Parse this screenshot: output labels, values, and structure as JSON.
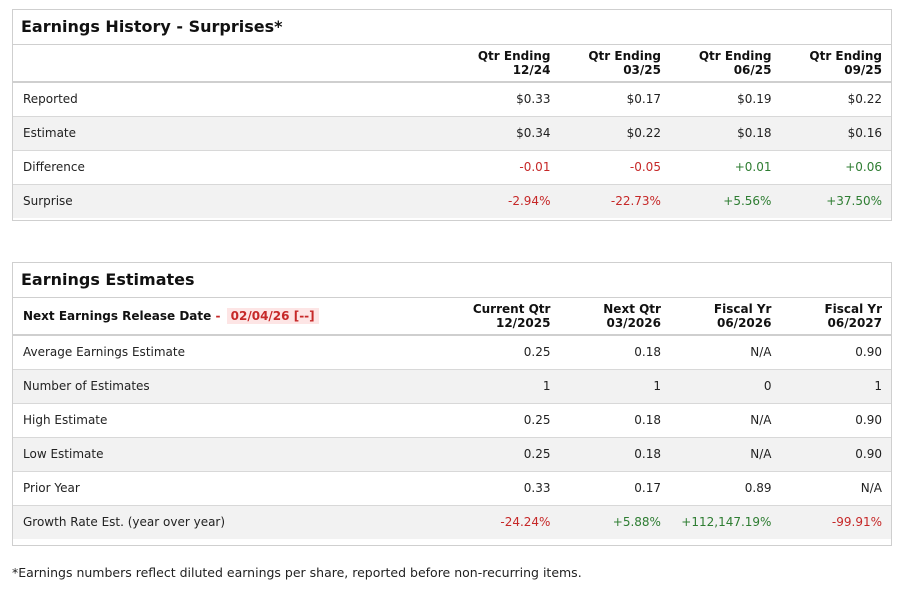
{
  "history": {
    "title": "Earnings History - Surprises*",
    "columns": [
      {
        "line1": "Qtr Ending",
        "line2": "12/24"
      },
      {
        "line1": "Qtr Ending",
        "line2": "03/25"
      },
      {
        "line1": "Qtr Ending",
        "line2": "06/25"
      },
      {
        "line1": "Qtr Ending",
        "line2": "09/25"
      }
    ],
    "rows": [
      {
        "label": "Reported",
        "values": [
          "$0.33",
          "$0.17",
          "$0.19",
          "$0.22"
        ]
      },
      {
        "label": "Estimate",
        "values": [
          "$0.34",
          "$0.22",
          "$0.18",
          "$0.16"
        ]
      },
      {
        "label": "Difference",
        "values": [
          "-0.01",
          "-0.05",
          "+0.01",
          "+0.06"
        ]
      },
      {
        "label": "Surprise",
        "values": [
          "-2.94%",
          "-22.73%",
          "+5.56%",
          "+37.50%"
        ]
      }
    ]
  },
  "estimates": {
    "title": "Earnings Estimates",
    "release_label": "Next Earnings Release Date",
    "release_dash": "-",
    "release_date": "02/04/26",
    "release_suffix": "[--]",
    "columns": [
      {
        "line1": "Current Qtr",
        "line2": "12/2025"
      },
      {
        "line1": "Next Qtr",
        "line2": "03/2026"
      },
      {
        "line1": "Fiscal Yr",
        "line2": "06/2026"
      },
      {
        "line1": "Fiscal Yr",
        "line2": "06/2027"
      }
    ],
    "rows": [
      {
        "label": "Average Earnings Estimate",
        "values": [
          "0.25",
          "0.18",
          "N/A",
          "0.90"
        ]
      },
      {
        "label": "Number of Estimates",
        "values": [
          "1",
          "1",
          "0",
          "1"
        ]
      },
      {
        "label": "High Estimate",
        "values": [
          "0.25",
          "0.18",
          "N/A",
          "0.90"
        ]
      },
      {
        "label": "Low Estimate",
        "values": [
          "0.25",
          "0.18",
          "N/A",
          "0.90"
        ]
      },
      {
        "label": "Prior Year",
        "values": [
          "0.33",
          "0.17",
          "0.89",
          "N/A"
        ]
      },
      {
        "label": "Growth Rate Est. (year over year)",
        "values": [
          "-24.24%",
          "+5.88%",
          "+112,147.19%",
          "-99.91%"
        ]
      }
    ]
  },
  "footnote": "*Earnings numbers reflect diluted earnings per share, reported before non-recurring items.",
  "colors": {
    "negative": "#c62828",
    "positive": "#2e7d32",
    "alt_row": "#f2f2f2",
    "border": "#cfcfcf"
  }
}
